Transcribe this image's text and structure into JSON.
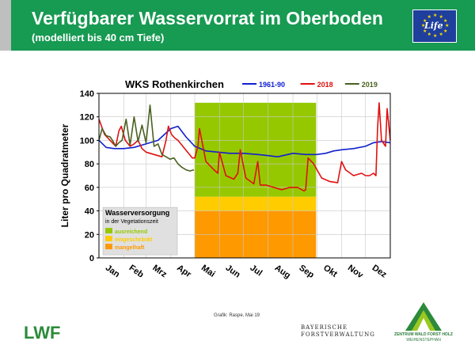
{
  "header": {
    "title": "Verfügbarer Wasservorrat im Oberboden",
    "subtitle": "(modelliert bis 40 cm Tiefe)",
    "eu_logo_text": "Life"
  },
  "chart_data": {
    "type": "line",
    "title": "WKS Rothenkirchen",
    "ylabel": "Liter pro Quadratmeter",
    "xlabel": "",
    "ylim": [
      0,
      140
    ],
    "yticks": [
      0,
      20,
      40,
      60,
      80,
      100,
      120,
      140
    ],
    "categories": [
      "Jan",
      "Feb",
      "Mrz",
      "Apr",
      "Mai",
      "Jun",
      "Jul",
      "Aug",
      "Sep",
      "Okt",
      "Nov",
      "Dez"
    ],
    "x_domain": [
      1,
      366
    ],
    "grid": true,
    "legend_position": "top",
    "series": [
      {
        "name": "1961-90",
        "color": "#1020d0",
        "x": [
          1,
          10,
          20,
          32,
          45,
          60,
          75,
          91,
          100,
          110,
          121,
          135,
          150,
          165,
          182,
          200,
          213,
          225,
          244,
          260,
          274,
          285,
          295,
          305,
          320,
          335,
          345,
          355,
          366
        ],
        "y": [
          100,
          94,
          93,
          93,
          94,
          97,
          100,
          110,
          112,
          103,
          95,
          91,
          90,
          89,
          89,
          88,
          87,
          86,
          89,
          88,
          88,
          89,
          91,
          92,
          93,
          95,
          98,
          99,
          98
        ]
      },
      {
        "name": "2018",
        "color": "#e01010",
        "x": [
          1,
          8,
          15,
          22,
          26,
          29,
          34,
          40,
          45,
          50,
          55,
          60,
          70,
          80,
          85,
          88,
          92,
          96,
          100,
          106,
          112,
          118,
          121,
          125,
          127,
          135,
          145,
          150,
          152,
          160,
          170,
          175,
          178,
          185,
          195,
          200,
          203,
          210,
          220,
          230,
          240,
          250,
          258,
          260,
          263,
          270,
          280,
          290,
          300,
          305,
          310,
          320,
          330,
          335,
          340,
          345,
          348,
          350,
          352,
          355,
          360,
          362,
          366
        ],
        "y": [
          118,
          105,
          100,
          95,
          108,
          112,
          100,
          95,
          97,
          100,
          93,
          90,
          88,
          86,
          100,
          112,
          105,
          102,
          100,
          95,
          90,
          85,
          85,
          95,
          110,
          82,
          75,
          72,
          90,
          70,
          67,
          72,
          92,
          68,
          63,
          82,
          62,
          62,
          60,
          58,
          60,
          60,
          57,
          58,
          85,
          80,
          68,
          65,
          64,
          82,
          75,
          70,
          72,
          70,
          70,
          72,
          70,
          110,
          132,
          100,
          95,
          127,
          100
        ]
      },
      {
        "name": "2019",
        "color": "#4a6020",
        "x": [
          1,
          5,
          10,
          15,
          18,
          22,
          26,
          30,
          35,
          40,
          45,
          50,
          55,
          60,
          65,
          70,
          75,
          80,
          85,
          90,
          95,
          100,
          105,
          110,
          115,
          120
        ],
        "y": [
          100,
          110,
          104,
          103,
          100,
          95,
          98,
          100,
          118,
          96,
          120,
          99,
          113,
          98,
          130,
          95,
          97,
          88,
          86,
          84,
          85,
          80,
          77,
          75,
          74,
          75
        ]
      }
    ],
    "highlight_range": {
      "from": 121,
      "to": 273
    },
    "bands": [
      {
        "label": "ausreichend",
        "from": 52,
        "to": 132,
        "color": "#96c800"
      },
      {
        "label": "eingeschränkt",
        "from": 40,
        "to": 52,
        "color": "#ffcc00"
      },
      {
        "label": "mangelhaft",
        "from": 0,
        "to": 40,
        "color": "#ff9900"
      }
    ],
    "legend_box": {
      "title": "Wasserversorgung",
      "subtitle": "in der Vegetationszeit"
    }
  },
  "footer": {
    "credit": "Grafik: Raspe, Mai 19",
    "lwf_text": "LWF",
    "bayern_line1": "BAYERISCHE",
    "bayern_line2": "FORSTVERWALTUNG",
    "zwfh_name": "ZENTRUM WALD FORST HOLZ",
    "zwfh_place": "WEIHENSTEPHAN"
  }
}
